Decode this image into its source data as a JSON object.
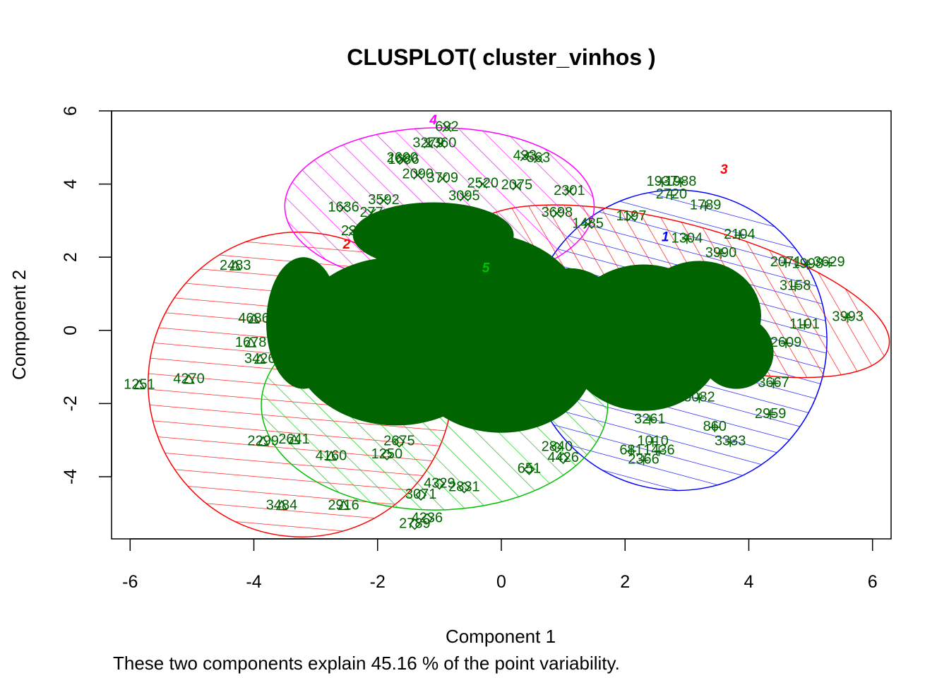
{
  "chart_data": {
    "type": "scatter",
    "title": "CLUSPLOT( cluster_vinhos )",
    "xlabel": "Component 1",
    "ylabel": "Component 2",
    "caption": "These two components explain 45.16 % of the point variability.",
    "xlim": [
      -6.3,
      6.3
    ],
    "ylim": [
      -5.7,
      6.0
    ],
    "xticks": [
      "-6",
      "-4",
      "-2",
      "0",
      "2",
      "4",
      "6"
    ],
    "yticks": [
      "-4",
      "-2",
      "0",
      "2",
      "4",
      "6"
    ],
    "grid": false,
    "colors": {
      "points": "#006400",
      "cluster_1": "#0000ff",
      "cluster_2": "#ff0000",
      "cluster_3": "#ff0000",
      "cluster_4": "#ff00ff",
      "cluster_5": "#00c000"
    },
    "clusters": [
      {
        "id": "1",
        "center": [
          2.84,
          -0.27
        ],
        "rx": 2.42,
        "ry": 4.11,
        "rot_deg": -30,
        "label_pos": [
          2.65,
          2.55
        ]
      },
      {
        "id": "2",
        "center": [
          -3.25,
          -1.48
        ],
        "rx": 2.45,
        "ry": 4.18,
        "rot_deg": -40,
        "label_pos": [
          -2.5,
          2.35
        ]
      },
      {
        "id": "3",
        "center": [
          2.86,
          1.07
        ],
        "rx": 3.52,
        "ry": 1.85,
        "rot_deg": 15,
        "label_pos": [
          3.6,
          4.4
        ]
      },
      {
        "id": "4",
        "center": [
          -1.0,
          3.39
        ],
        "rx": 2.5,
        "ry": 2.15,
        "rot_deg": 0,
        "label_pos": [
          -1.1,
          5.75
        ]
      },
      {
        "id": "5",
        "center": [
          -1.08,
          -2.04
        ],
        "rx": 2.8,
        "ry": 2.87,
        "rot_deg": 0,
        "label_pos": [
          -0.25,
          1.7
        ]
      }
    ],
    "points": [
      {
        "label": "692",
        "x": -0.88,
        "y": 5.55,
        "pch": "x"
      },
      {
        "label": "3279",
        "x": -1.18,
        "y": 5.1,
        "pch": "x"
      },
      {
        "label": "1360",
        "x": -0.98,
        "y": 5.1,
        "pch": "x"
      },
      {
        "label": "2600",
        "x": -1.6,
        "y": 4.7,
        "pch": "x"
      },
      {
        "label": "1686",
        "x": -1.58,
        "y": 4.65,
        "pch": "x"
      },
      {
        "label": "433",
        "x": 0.38,
        "y": 4.75,
        "pch": "x"
      },
      {
        "label": "563",
        "x": 0.6,
        "y": 4.7,
        "pch": "x"
      },
      {
        "label": "2090",
        "x": -1.35,
        "y": 4.25,
        "pch": "x"
      },
      {
        "label": "3709",
        "x": -0.95,
        "y": 4.15,
        "pch": "x"
      },
      {
        "label": "2520",
        "x": -0.3,
        "y": 4.0,
        "pch": "x"
      },
      {
        "label": "2075",
        "x": 0.25,
        "y": 3.95,
        "pch": "x"
      },
      {
        "label": "2301",
        "x": 1.1,
        "y": 3.8,
        "pch": "x"
      },
      {
        "label": "1636",
        "x": -2.55,
        "y": 3.35,
        "pch": "x"
      },
      {
        "label": "3592",
        "x": -1.9,
        "y": 3.55,
        "pch": "x"
      },
      {
        "label": "3095",
        "x": -0.6,
        "y": 3.65,
        "pch": "x"
      },
      {
        "label": "277",
        "x": -2.1,
        "y": 3.2,
        "pch": "x"
      },
      {
        "label": "235",
        "x": -2.4,
        "y": 2.7,
        "pch": "x"
      },
      {
        "label": "1485",
        "x": 1.4,
        "y": 2.9,
        "pch": "x"
      },
      {
        "label": "1197",
        "x": 2.1,
        "y": 3.1,
        "pch": "x"
      },
      {
        "label": "3698",
        "x": 0.9,
        "y": 3.2,
        "pch": "x"
      },
      {
        "label": "1937",
        "x": 2.6,
        "y": 4.05,
        "pch": "+"
      },
      {
        "label": "1988",
        "x": 2.9,
        "y": 4.05,
        "pch": "+"
      },
      {
        "label": "2720",
        "x": 2.75,
        "y": 3.7,
        "pch": "+"
      },
      {
        "label": "1789",
        "x": 3.3,
        "y": 3.4,
        "pch": "+"
      },
      {
        "label": "2104",
        "x": 3.85,
        "y": 2.6,
        "pch": "+"
      },
      {
        "label": "1304",
        "x": 3.0,
        "y": 2.5,
        "pch": "+"
      },
      {
        "label": "3990",
        "x": 3.55,
        "y": 2.1,
        "pch": "+"
      },
      {
        "label": "3629",
        "x": 5.3,
        "y": 1.85,
        "pch": "+"
      },
      {
        "label": "2071",
        "x": 4.6,
        "y": 1.85,
        "pch": "+"
      },
      {
        "label": "1998",
        "x": 4.95,
        "y": 1.8,
        "pch": "+"
      },
      {
        "label": "3158",
        "x": 4.75,
        "y": 1.2,
        "pch": "+"
      },
      {
        "label": "3993",
        "x": 5.6,
        "y": 0.35,
        "pch": "+"
      },
      {
        "label": "1101",
        "x": 4.9,
        "y": 0.15,
        "pch": "+"
      },
      {
        "label": "2609",
        "x": 4.6,
        "y": -0.35,
        "pch": "+"
      },
      {
        "label": "3667",
        "x": 4.4,
        "y": -1.45,
        "pch": "+"
      },
      {
        "label": "2959",
        "x": 4.35,
        "y": -2.3,
        "pch": "+"
      },
      {
        "label": "860",
        "x": 3.45,
        "y": -2.65,
        "pch": "+"
      },
      {
        "label": "3333",
        "x": 3.7,
        "y": -3.05,
        "pch": "+"
      },
      {
        "label": "3082",
        "x": 3.2,
        "y": -1.85,
        "pch": "+"
      },
      {
        "label": "3261",
        "x": 2.4,
        "y": -2.45,
        "pch": "+"
      },
      {
        "label": "1010",
        "x": 2.45,
        "y": -3.05,
        "pch": "+"
      },
      {
        "label": "681",
        "x": 2.1,
        "y": -3.3,
        "pch": "+"
      },
      {
        "label": "1436",
        "x": 2.55,
        "y": -3.3,
        "pch": "+"
      },
      {
        "label": "2366",
        "x": 2.3,
        "y": -3.55,
        "pch": "+"
      },
      {
        "label": "2483",
        "x": -4.3,
        "y": 1.75,
        "pch": "^"
      },
      {
        "label": "4686",
        "x": -4.0,
        "y": 0.3,
        "pch": "^"
      },
      {
        "label": "1678",
        "x": -4.05,
        "y": -0.35,
        "pch": "^"
      },
      {
        "label": "3426",
        "x": -3.9,
        "y": -0.8,
        "pch": "^"
      },
      {
        "label": "1251",
        "x": -5.85,
        "y": -1.5,
        "pch": "^"
      },
      {
        "label": "4270",
        "x": -5.05,
        "y": -1.35,
        "pch": "^"
      },
      {
        "label": "2299",
        "x": -3.85,
        "y": -3.05,
        "pch": "^"
      },
      {
        "label": "2641",
        "x": -3.35,
        "y": -3.0,
        "pch": "^"
      },
      {
        "label": "4160",
        "x": -2.75,
        "y": -3.45,
        "pch": "^"
      },
      {
        "label": "3484",
        "x": -3.55,
        "y": -4.8,
        "pch": "^"
      },
      {
        "label": "2916",
        "x": -2.55,
        "y": -4.8,
        "pch": "^"
      },
      {
        "label": "1250",
        "x": -1.85,
        "y": -3.4,
        "pch": "d"
      },
      {
        "label": "2675",
        "x": -1.65,
        "y": -3.05,
        "pch": "d"
      },
      {
        "label": "4329",
        "x": -1.0,
        "y": -4.2,
        "pch": "d"
      },
      {
        "label": "2831",
        "x": -0.6,
        "y": -4.3,
        "pch": "d"
      },
      {
        "label": "3071",
        "x": -1.3,
        "y": -4.5,
        "pch": "d"
      },
      {
        "label": "4236",
        "x": -1.2,
        "y": -5.15,
        "pch": "d"
      },
      {
        "label": "2789",
        "x": -1.4,
        "y": -5.3,
        "pch": "d"
      },
      {
        "label": "651",
        "x": 0.45,
        "y": -3.8,
        "pch": "d"
      },
      {
        "label": "4426",
        "x": 1.0,
        "y": -3.5,
        "pch": "d"
      },
      {
        "label": "2840",
        "x": 0.9,
        "y": -3.2,
        "pch": "d"
      }
    ]
  }
}
